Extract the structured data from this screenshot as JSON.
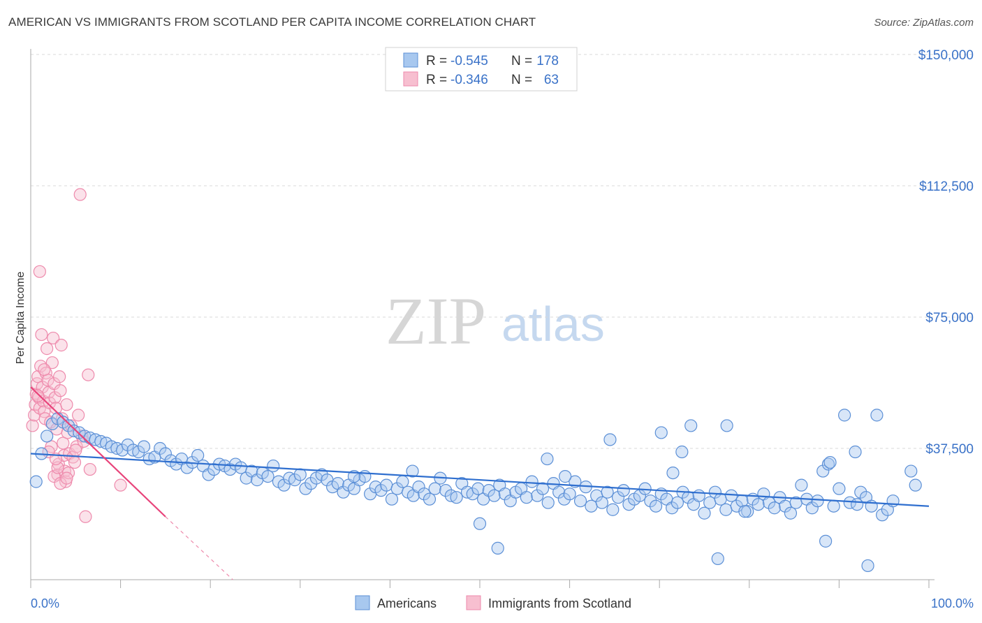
{
  "header": {
    "title": "AMERICAN VS IMMIGRANTS FROM SCOTLAND PER CAPITA INCOME CORRELATION CHART",
    "source": "Source: ZipAtlas.com"
  },
  "watermark": {
    "zip": "ZIP",
    "atlas": "atlas"
  },
  "legend_box": {
    "rows": [
      {
        "r_label": "R =",
        "r_value": "-0.545",
        "n_label": "N =",
        "n_value": "178"
      },
      {
        "r_label": "R =",
        "r_value": "-0.346",
        "n_label": "N =",
        "n_value": "63"
      }
    ]
  },
  "bottom_legend": {
    "americans": "Americans",
    "scotland": "Immigrants from Scotland"
  },
  "colors": {
    "americans_fill": "#a8c8ef",
    "americans_stroke": "#5b8fd6",
    "americans_line": "#2f6fcf",
    "scotland_fill": "#f7bfd0",
    "scotland_stroke": "#ee8aac",
    "scotland_line": "#e8437a",
    "grid": "#d8d8d8",
    "tick_label": "#3a72c8"
  },
  "chart_data": {
    "type": "scatter",
    "title": "AMERICAN VS IMMIGRANTS FROM SCOTLAND PER CAPITA INCOME CORRELATION CHART",
    "xlabel": "",
    "ylabel": "Per Capita Income",
    "xlim": [
      0,
      100
    ],
    "ylim": [
      0,
      150000
    ],
    "x_tick_labels": [
      "0.0%",
      "100.0%"
    ],
    "y_ticks": [
      37500,
      75000,
      112500,
      150000
    ],
    "y_tick_labels": [
      "$37,500",
      "$75,000",
      "$112,500",
      "$150,000"
    ],
    "grid": true,
    "series": [
      {
        "name": "Americans",
        "R": -0.545,
        "N": 178,
        "trend": {
          "x0": 0,
          "y0": 36000,
          "x1": 100,
          "y1": 21000
        },
        "points": [
          [
            0.6,
            28000
          ],
          [
            1.2,
            36000
          ],
          [
            1.8,
            41000
          ],
          [
            2.4,
            44500
          ],
          [
            3.0,
            46000
          ],
          [
            3.6,
            45000
          ],
          [
            4.2,
            44000
          ],
          [
            4.8,
            42500
          ],
          [
            5.4,
            42000
          ],
          [
            6.0,
            41000
          ],
          [
            6.6,
            40500
          ],
          [
            7.2,
            40000
          ],
          [
            7.8,
            39500
          ],
          [
            8.4,
            39000
          ],
          [
            9.0,
            38000
          ],
          [
            9.6,
            37500
          ],
          [
            10.2,
            37000
          ],
          [
            10.8,
            38500
          ],
          [
            11.4,
            37000
          ],
          [
            12.0,
            36500
          ],
          [
            12.6,
            38000
          ],
          [
            13.2,
            34500
          ],
          [
            13.8,
            35000
          ],
          [
            14.4,
            37500
          ],
          [
            15.0,
            36000
          ],
          [
            15.6,
            34000
          ],
          [
            16.2,
            33000
          ],
          [
            16.8,
            34500
          ],
          [
            17.4,
            32000
          ],
          [
            18.0,
            33500
          ],
          [
            18.6,
            35500
          ],
          [
            19.2,
            32500
          ],
          [
            19.8,
            30000
          ],
          [
            20.4,
            31500
          ],
          [
            21.0,
            33000
          ],
          [
            21.6,
            32500
          ],
          [
            22.2,
            31500
          ],
          [
            22.8,
            33000
          ],
          [
            23.4,
            32000
          ],
          [
            24.0,
            29000
          ],
          [
            24.6,
            31000
          ],
          [
            25.2,
            28500
          ],
          [
            25.8,
            30500
          ],
          [
            26.4,
            29500
          ],
          [
            27.0,
            32500
          ],
          [
            27.6,
            28000
          ],
          [
            28.2,
            27000
          ],
          [
            28.8,
            29000
          ],
          [
            29.4,
            28500
          ],
          [
            30.0,
            30000
          ],
          [
            30.6,
            26000
          ],
          [
            31.2,
            27500
          ],
          [
            31.8,
            29000
          ],
          [
            32.4,
            30000
          ],
          [
            33.0,
            28500
          ],
          [
            33.6,
            26500
          ],
          [
            34.2,
            27500
          ],
          [
            34.8,
            25000
          ],
          [
            35.4,
            27000
          ],
          [
            36.0,
            26000
          ],
          [
            36.6,
            28500
          ],
          [
            37.2,
            29500
          ],
          [
            37.8,
            24500
          ],
          [
            38.4,
            26500
          ],
          [
            39.0,
            25500
          ],
          [
            39.6,
            27000
          ],
          [
            40.2,
            23000
          ],
          [
            40.8,
            26000
          ],
          [
            41.4,
            28000
          ],
          [
            42.0,
            25000
          ],
          [
            42.6,
            24000
          ],
          [
            43.2,
            26500
          ],
          [
            43.8,
            24500
          ],
          [
            44.4,
            23000
          ],
          [
            45.0,
            26000
          ],
          [
            45.6,
            29000
          ],
          [
            46.2,
            25500
          ],
          [
            46.8,
            24000
          ],
          [
            47.4,
            23500
          ],
          [
            48.0,
            27500
          ],
          [
            48.6,
            25000
          ],
          [
            49.2,
            24500
          ],
          [
            49.8,
            26000
          ],
          [
            50.4,
            23000
          ],
          [
            51.0,
            25500
          ],
          [
            51.6,
            24000
          ],
          [
            52.2,
            27000
          ],
          [
            52.8,
            24500
          ],
          [
            53.4,
            22500
          ],
          [
            54.0,
            25000
          ],
          [
            54.6,
            26000
          ],
          [
            55.2,
            23500
          ],
          [
            55.8,
            28000
          ],
          [
            56.4,
            24000
          ],
          [
            57.0,
            26000
          ],
          [
            57.6,
            22000
          ],
          [
            58.2,
            27500
          ],
          [
            58.8,
            25000
          ],
          [
            59.4,
            23000
          ],
          [
            60.0,
            24500
          ],
          [
            60.6,
            28000
          ],
          [
            61.2,
            22500
          ],
          [
            61.8,
            26500
          ],
          [
            62.4,
            21000
          ],
          [
            63.0,
            24000
          ],
          [
            63.6,
            22000
          ],
          [
            64.2,
            25000
          ],
          [
            64.8,
            20000
          ],
          [
            65.4,
            23500
          ],
          [
            66.0,
            25500
          ],
          [
            66.6,
            21500
          ],
          [
            67.2,
            23000
          ],
          [
            67.8,
            24000
          ],
          [
            68.4,
            26000
          ],
          [
            69.0,
            22500
          ],
          [
            69.6,
            21000
          ],
          [
            70.2,
            24500
          ],
          [
            70.8,
            23000
          ],
          [
            71.4,
            20500
          ],
          [
            72.0,
            22000
          ],
          [
            72.6,
            25000
          ],
          [
            73.2,
            23500
          ],
          [
            73.8,
            21500
          ],
          [
            74.4,
            24000
          ],
          [
            75.0,
            19000
          ],
          [
            75.6,
            22000
          ],
          [
            76.2,
            25000
          ],
          [
            76.8,
            23000
          ],
          [
            77.4,
            20000
          ],
          [
            78.0,
            24000
          ],
          [
            78.6,
            21000
          ],
          [
            79.2,
            22500
          ],
          [
            79.8,
            19500
          ],
          [
            80.4,
            23000
          ],
          [
            81.0,
            21500
          ],
          [
            81.6,
            24500
          ],
          [
            82.2,
            22000
          ],
          [
            82.8,
            20500
          ],
          [
            83.4,
            23500
          ],
          [
            84.0,
            21000
          ],
          [
            84.6,
            19000
          ],
          [
            85.2,
            22000
          ],
          [
            85.8,
            27000
          ],
          [
            86.4,
            23000
          ],
          [
            87.0,
            20500
          ],
          [
            87.6,
            22500
          ],
          [
            88.2,
            31000
          ],
          [
            88.8,
            33000
          ],
          [
            89.4,
            21000
          ],
          [
            90.0,
            26000
          ],
          [
            90.6,
            47000
          ],
          [
            91.2,
            22000
          ],
          [
            91.8,
            36500
          ],
          [
            92.4,
            25000
          ],
          [
            93.0,
            23500
          ],
          [
            93.6,
            21000
          ],
          [
            94.2,
            47000
          ],
          [
            94.8,
            18500
          ],
          [
            95.4,
            20000
          ],
          [
            96.0,
            22500
          ],
          [
            73.5,
            44000
          ],
          [
            70.2,
            42000
          ],
          [
            64.5,
            40000
          ],
          [
            71.5,
            30500
          ],
          [
            77.5,
            44000
          ],
          [
            72.5,
            36500
          ],
          [
            57.5,
            34500
          ],
          [
            59.5,
            29500
          ],
          [
            79.5,
            19500
          ],
          [
            89.0,
            33500
          ],
          [
            92.0,
            21500
          ],
          [
            98.5,
            27000
          ],
          [
            98.0,
            31000
          ],
          [
            88.5,
            11000
          ],
          [
            76.5,
            6000
          ],
          [
            93.2,
            4000
          ],
          [
            52.0,
            9000
          ],
          [
            50.0,
            16000
          ],
          [
            42.5,
            31000
          ],
          [
            36.0,
            29500
          ]
        ]
      },
      {
        "name": "Immigrants from Scotland",
        "R": -0.346,
        "N": 63,
        "trend": {
          "x0": 0,
          "y0": 55000,
          "x1": 15,
          "y1": 18000
        },
        "trend_dashed_to": {
          "x": 22.5,
          "y": 0
        },
        "points": [
          [
            0.2,
            44000
          ],
          [
            0.4,
            47000
          ],
          [
            0.5,
            50000
          ],
          [
            0.6,
            53000
          ],
          [
            0.7,
            56000
          ],
          [
            0.8,
            58000
          ],
          [
            0.9,
            52000
          ],
          [
            1.0,
            49000
          ],
          [
            1.1,
            61000
          ],
          [
            1.2,
            70000
          ],
          [
            1.3,
            55000
          ],
          [
            1.4,
            51000
          ],
          [
            1.5,
            48000
          ],
          [
            1.6,
            46000
          ],
          [
            1.7,
            59000
          ],
          [
            1.8,
            66000
          ],
          [
            1.9,
            57000
          ],
          [
            2.0,
            53500
          ],
          [
            2.1,
            50500
          ],
          [
            2.2,
            45000
          ],
          [
            2.3,
            38000
          ],
          [
            2.4,
            62000
          ],
          [
            2.5,
            69000
          ],
          [
            2.6,
            56000
          ],
          [
            2.7,
            52000
          ],
          [
            2.8,
            49000
          ],
          [
            2.9,
            43000
          ],
          [
            3.0,
            30000
          ],
          [
            3.1,
            33000
          ],
          [
            3.2,
            58000
          ],
          [
            3.3,
            54000
          ],
          [
            3.4,
            67000
          ],
          [
            3.5,
            46000
          ],
          [
            3.6,
            39000
          ],
          [
            3.7,
            35500
          ],
          [
            3.8,
            31000
          ],
          [
            3.9,
            28000
          ],
          [
            4.0,
            50000
          ],
          [
            4.1,
            42000
          ],
          [
            4.2,
            30500
          ],
          [
            4.3,
            36000
          ],
          [
            4.5,
            44000
          ],
          [
            4.7,
            35000
          ],
          [
            4.9,
            33500
          ],
          [
            5.1,
            38000
          ],
          [
            5.3,
            47000
          ],
          [
            5.5,
            110000
          ],
          [
            5.7,
            41000
          ],
          [
            5.9,
            39500
          ],
          [
            6.1,
            18000
          ],
          [
            6.4,
            58500
          ],
          [
            6.6,
            31500
          ],
          [
            1.0,
            88000
          ],
          [
            2.6,
            29500
          ],
          [
            3.3,
            27500
          ],
          [
            3.0,
            32000
          ],
          [
            2.0,
            36500
          ],
          [
            4.0,
            29000
          ],
          [
            5.0,
            37000
          ],
          [
            0.8,
            52500
          ],
          [
            1.5,
            60000
          ],
          [
            2.8,
            34500
          ],
          [
            10.0,
            27000
          ]
        ]
      }
    ]
  }
}
